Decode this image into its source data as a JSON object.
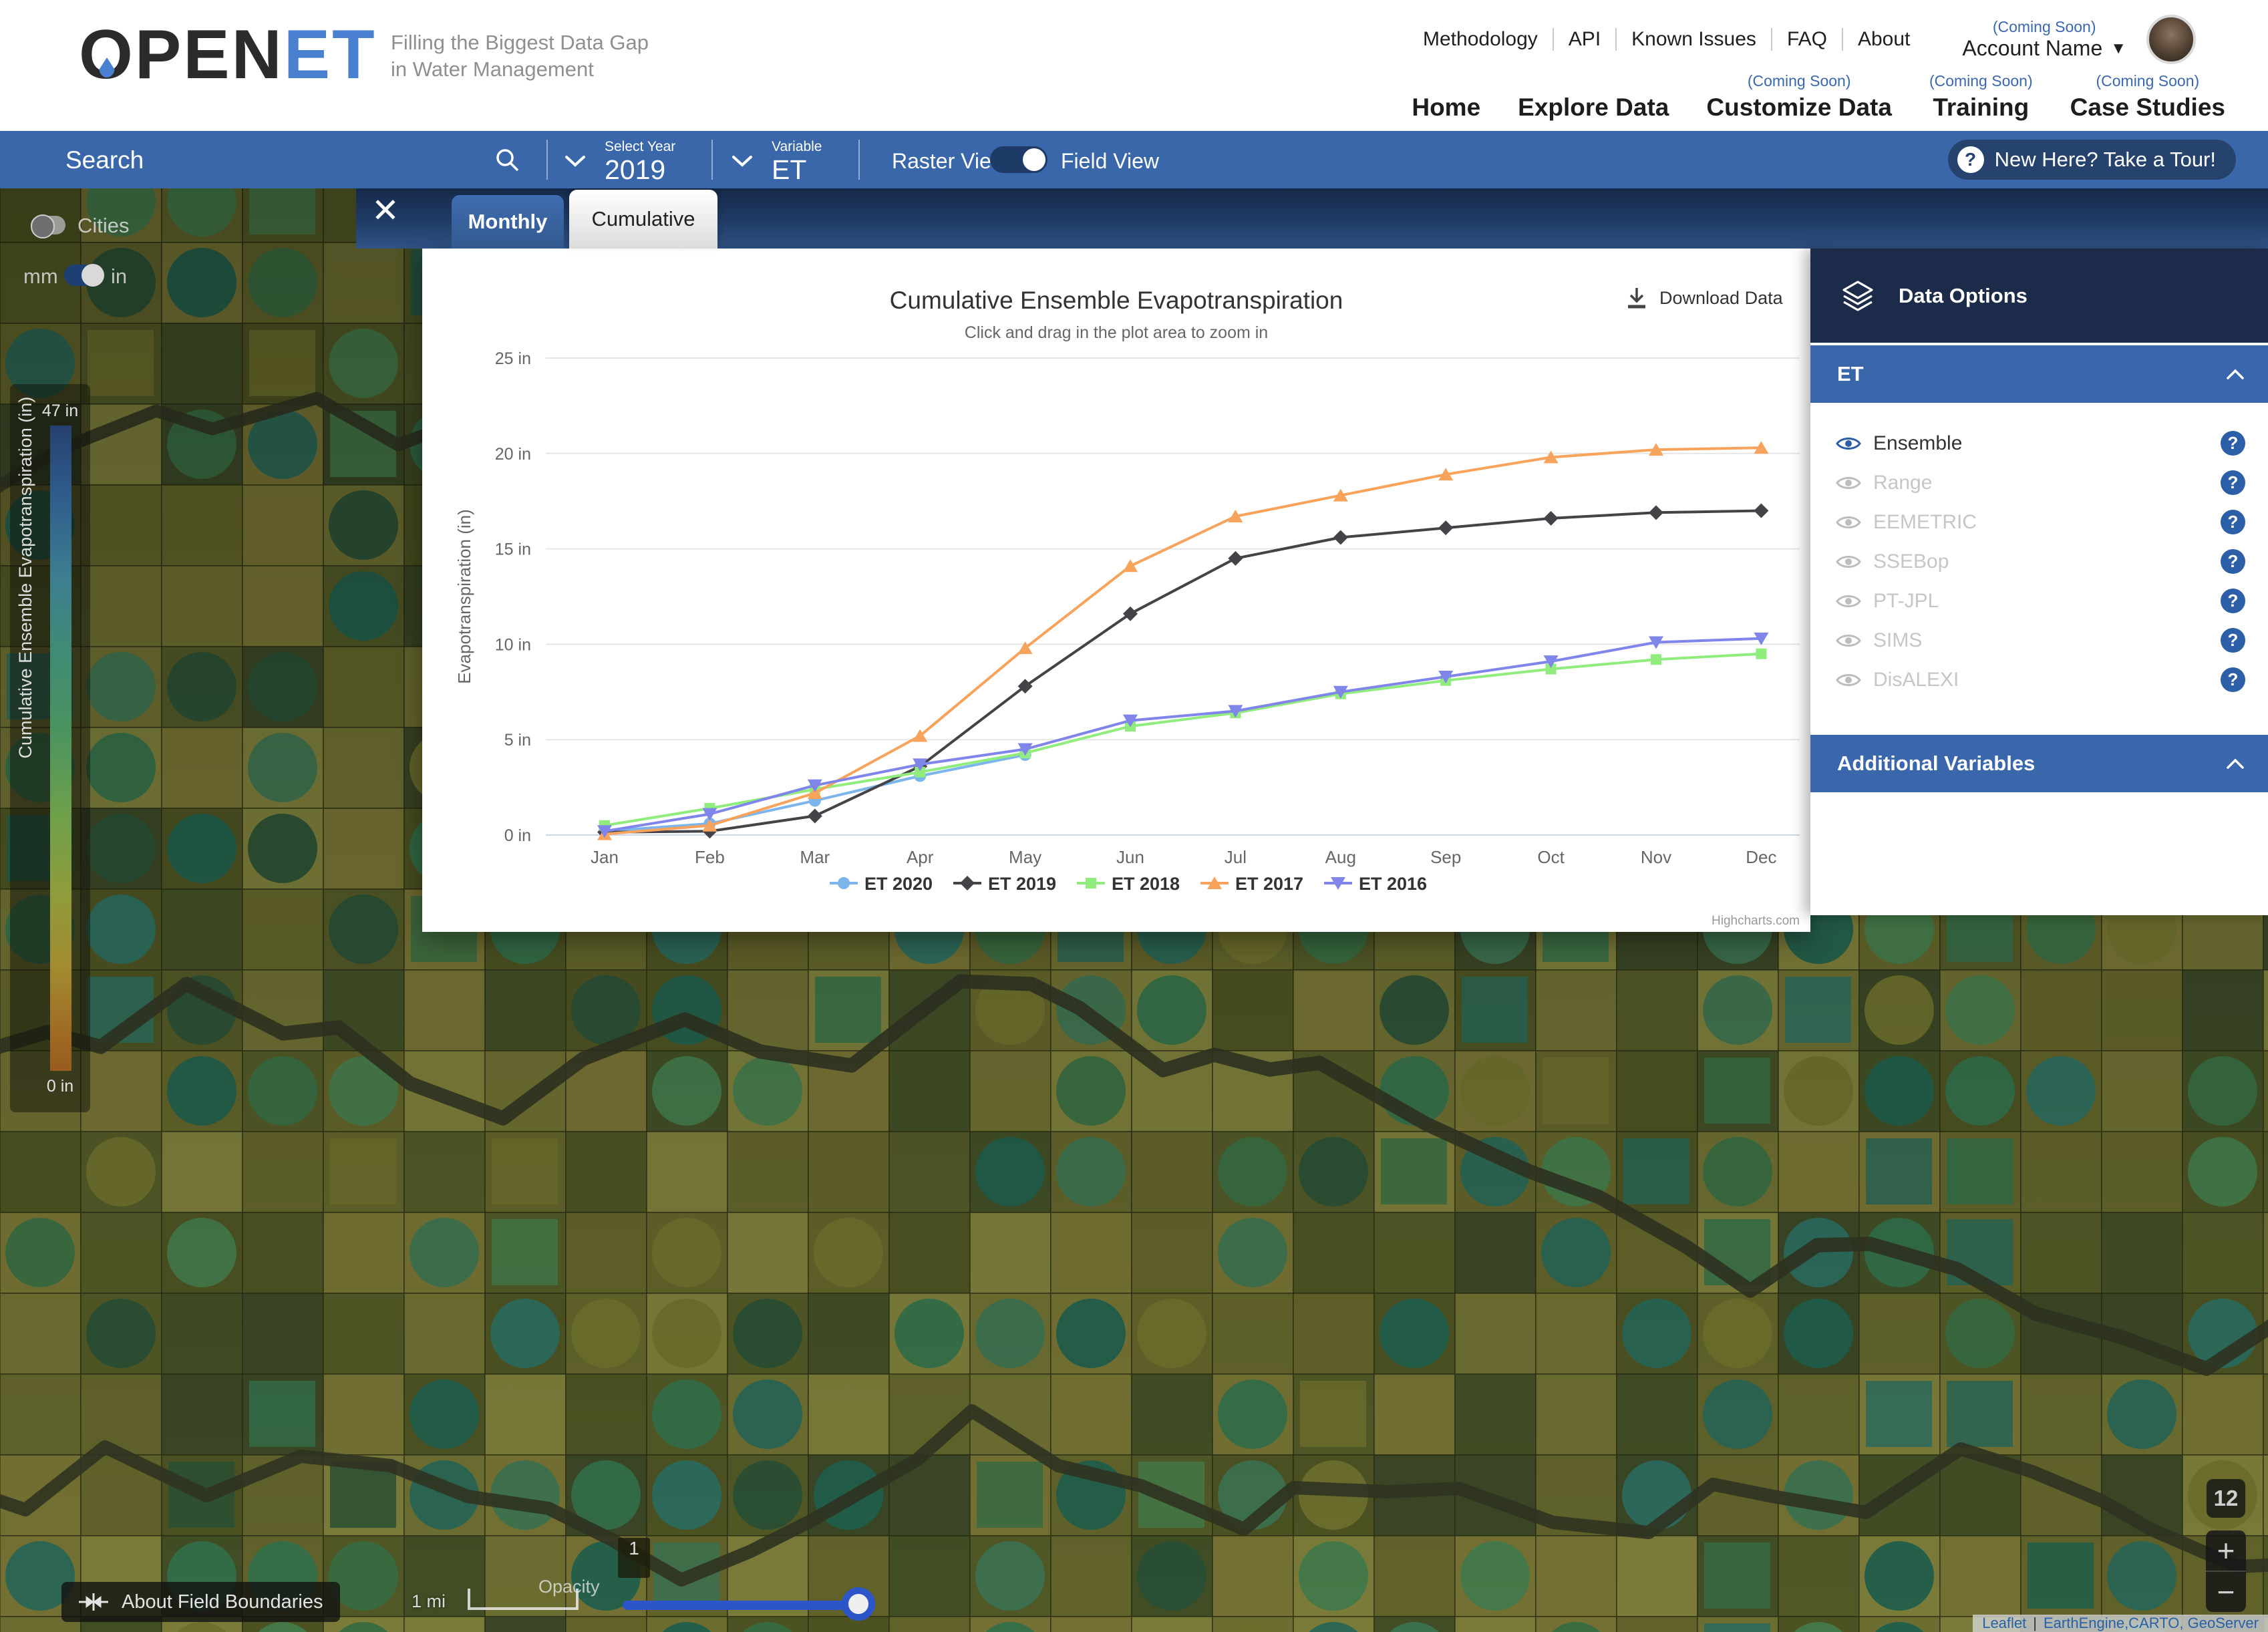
{
  "header": {
    "logo_part1": "OPEN",
    "logo_part2": "ET",
    "tagline_line1": "Filling the Biggest Data Gap",
    "tagline_line2": "in Water Management",
    "top_links": [
      "Methodology",
      "API",
      "Known Issues",
      "FAQ",
      "About"
    ],
    "account": {
      "coming_soon": "(Coming Soon)",
      "label": "Account Name"
    },
    "nav_items": [
      {
        "label": "Home",
        "badge": ""
      },
      {
        "label": "Explore Data",
        "badge": ""
      },
      {
        "label": "Customize Data",
        "badge": "(Coming Soon)"
      },
      {
        "label": "Training",
        "badge": "(Coming Soon)"
      },
      {
        "label": "Case Studies",
        "badge": "(Coming Soon)"
      }
    ]
  },
  "toolbar": {
    "search_placeholder": "Search",
    "select_year_label": "Select Year",
    "select_year_value": "2019",
    "variable_label": "Variable",
    "variable_value": "ET",
    "raster_view_label": "Raster View",
    "field_view_label": "Field View",
    "tour_button": "New Here? Take a Tour!",
    "tour_icon": "?"
  },
  "chart_panel": {
    "tabs": [
      {
        "label": "Monthly",
        "active": false
      },
      {
        "label": "Cumulative",
        "active": true
      }
    ],
    "close_label": "✕",
    "download_label": "Download Data",
    "credit": "Highcharts.com"
  },
  "chart_data": {
    "type": "line",
    "title": "Cumulative Ensemble Evapotranspiration",
    "subtitle": "Click and drag in the plot area to zoom in",
    "ylabel": "Evapotranspiration (in)",
    "categories": [
      "Jan",
      "Feb",
      "Mar",
      "Apr",
      "May",
      "Jun",
      "Jul",
      "Aug",
      "Sep",
      "Oct",
      "Nov",
      "Dec"
    ],
    "ylim": [
      0,
      25
    ],
    "ytick_step": 5,
    "ytick_labels": [
      "0 in",
      "5 in",
      "10 in",
      "15 in",
      "20 in",
      "25 in"
    ],
    "grid": true,
    "legend_position": "bottom",
    "series": [
      {
        "name": "ET 2020",
        "color": "#7cb5ec",
        "marker": "circle",
        "values": [
          0.2,
          0.6,
          1.8,
          3.1,
          4.2,
          null,
          null,
          null,
          null,
          null,
          null,
          null
        ]
      },
      {
        "name": "ET 2019",
        "color": "#434348",
        "marker": "diamond",
        "values": [
          0.15,
          0.2,
          1.0,
          3.6,
          7.8,
          11.6,
          14.5,
          15.6,
          16.1,
          16.6,
          16.9,
          17.0
        ]
      },
      {
        "name": "ET 2018",
        "color": "#90ed7d",
        "marker": "square",
        "values": [
          0.5,
          1.4,
          2.4,
          3.3,
          4.3,
          5.7,
          6.4,
          7.4,
          8.1,
          8.7,
          9.2,
          9.5
        ]
      },
      {
        "name": "ET 2017",
        "color": "#f7a35c",
        "marker": "triangle",
        "values": [
          0.05,
          0.5,
          2.2,
          5.2,
          9.8,
          14.1,
          16.7,
          17.8,
          18.9,
          19.8,
          20.2,
          20.3
        ]
      },
      {
        "name": "ET 2016",
        "color": "#8085e9",
        "marker": "triangle-down",
        "values": [
          0.2,
          1.1,
          2.6,
          3.7,
          4.5,
          6.0,
          6.5,
          7.5,
          8.3,
          9.1,
          10.1,
          10.3
        ]
      }
    ]
  },
  "sidebar": {
    "title": "Data Options",
    "et_section_label": "ET",
    "additional_section_label": "Additional Variables",
    "et_items": [
      {
        "label": "Ensemble",
        "enabled": true
      },
      {
        "label": "Range",
        "enabled": false
      },
      {
        "label": "EEMETRIC",
        "enabled": false
      },
      {
        "label": "SSEBop",
        "enabled": false
      },
      {
        "label": "PT-JPL",
        "enabled": false
      },
      {
        "label": "SIMS",
        "enabled": false
      },
      {
        "label": "DisALEXI",
        "enabled": false
      }
    ],
    "help_icon": "?"
  },
  "map": {
    "cities_label": "Cities",
    "units_mm_label": "mm",
    "units_in_label": "in",
    "colorbar": {
      "title": "Cumulative Ensemble Evapotranspiration (in)",
      "max_label": "47 in",
      "min_label": "0 in"
    },
    "about_field_boundaries": "About Field Boundaries",
    "scale_label": "1 mi",
    "opacity_label": "Opacity",
    "opacity_value": "1",
    "zoom_level": "12",
    "zoom_in_label": "+",
    "zoom_out_label": "−",
    "attribution_leaflet": "Leaflet",
    "attribution_sources": "EarthEngine,CARTO, GeoServer"
  },
  "colors": {
    "toolbar_blue": "#3a67a9",
    "navy": "#1b2b49",
    "section_blue": "#3a67ab",
    "accent_blue": "#2d5fa8",
    "slider_blue": "#2b55c8",
    "coming_soon_blue": "#3b67ad",
    "logo_blue": "#4a80d0"
  }
}
